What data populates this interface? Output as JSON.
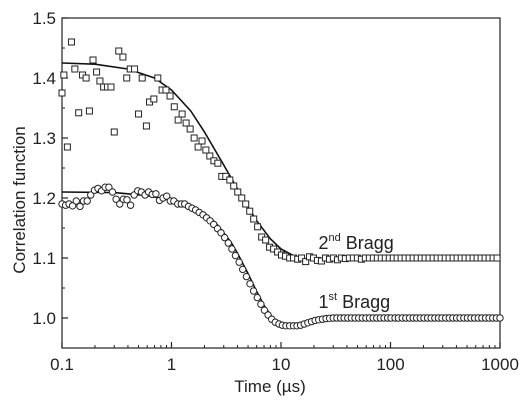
{
  "chart_data": {
    "type": "scatter",
    "xlabel_main": "Time (",
    "xlabel_unit": "µs",
    "xlabel_close": ")",
    "ylabel": "Correlation function",
    "x_scale": "log",
    "xlim": [
      0.1,
      1000
    ],
    "ylim": [
      0.95,
      1.5
    ],
    "x_ticks": [
      {
        "value": 0.1,
        "label": "0.1"
      },
      {
        "value": 1,
        "label": "1"
      },
      {
        "value": 10,
        "label": "10"
      },
      {
        "value": 100,
        "label": "100"
      },
      {
        "value": 1000,
        "label": "1000"
      }
    ],
    "y_ticks": [
      {
        "value": 1.0,
        "label": "1.0"
      },
      {
        "value": 1.1,
        "label": "1.1"
      },
      {
        "value": 1.2,
        "label": "1.2"
      },
      {
        "value": 1.3,
        "label": "1.3"
      },
      {
        "value": 1.4,
        "label": "1.4"
      },
      {
        "value": 1.5,
        "label": "1.5"
      }
    ],
    "grid": false,
    "series": [
      {
        "name": "2nd Bragg",
        "marker": "square",
        "points": [
          [
            0.1,
            1.375
          ],
          [
            0.104,
            1.405
          ],
          [
            0.112,
            1.285
          ],
          [
            0.122,
            1.46
          ],
          [
            0.131,
            1.415
          ],
          [
            0.142,
            1.342
          ],
          [
            0.154,
            1.405
          ],
          [
            0.166,
            1.4
          ],
          [
            0.178,
            1.345
          ],
          [
            0.192,
            1.43
          ],
          [
            0.207,
            1.41
          ],
          [
            0.222,
            1.395
          ],
          [
            0.24,
            1.385
          ],
          [
            0.26,
            1.385
          ],
          [
            0.28,
            1.385
          ],
          [
            0.3,
            1.31
          ],
          [
            0.33,
            1.445
          ],
          [
            0.36,
            1.435
          ],
          [
            0.39,
            1.4
          ],
          [
            0.42,
            1.415
          ],
          [
            0.46,
            1.415
          ],
          [
            0.5,
            1.34
          ],
          [
            0.54,
            1.4
          ],
          [
            0.59,
            1.32
          ],
          [
            0.63,
            1.36
          ],
          [
            0.69,
            1.365
          ],
          [
            0.75,
            1.4
          ],
          [
            0.82,
            1.38
          ],
          [
            0.89,
            1.38
          ],
          [
            0.97,
            1.37
          ],
          [
            1.06,
            1.352
          ],
          [
            1.15,
            1.33
          ],
          [
            1.25,
            1.34
          ],
          [
            1.36,
            1.325
          ],
          [
            1.48,
            1.315
          ],
          [
            1.61,
            1.3
          ],
          [
            1.75,
            1.285
          ],
          [
            1.9,
            1.295
          ],
          [
            2.06,
            1.28
          ],
          [
            2.24,
            1.27
          ],
          [
            2.44,
            1.262
          ],
          [
            2.65,
            1.258
          ],
          [
            2.88,
            1.236
          ],
          [
            3.13,
            1.236
          ],
          [
            3.41,
            1.23
          ],
          [
            3.7,
            1.22
          ],
          [
            4.03,
            1.21
          ],
          [
            4.38,
            1.2
          ],
          [
            4.76,
            1.19
          ],
          [
            5.18,
            1.178
          ],
          [
            5.63,
            1.165
          ],
          [
            6.12,
            1.152
          ],
          [
            6.66,
            1.135
          ],
          [
            7.24,
            1.13
          ],
          [
            7.87,
            1.118
          ],
          [
            8.56,
            1.115
          ],
          [
            9.31,
            1.11
          ],
          [
            10.1,
            1.105
          ],
          [
            11,
            1.103
          ],
          [
            12,
            1.1
          ],
          [
            13,
            1.1
          ],
          [
            14.2,
            1.098
          ],
          [
            15.4,
            1.1
          ],
          [
            16.8,
            1.094
          ],
          [
            18.2,
            1.102
          ],
          [
            19.8,
            1.1
          ],
          [
            21.5,
            1.096
          ],
          [
            23.4,
            1.095
          ],
          [
            25.5,
            1.1
          ],
          [
            27.7,
            1.098
          ],
          [
            30.1,
            1.1
          ],
          [
            32.8,
            1.097
          ],
          [
            35.6,
            1.1
          ],
          [
            38.7,
            1.099
          ],
          [
            42.1,
            1.1
          ],
          [
            45.8,
            1.1
          ],
          [
            49.8,
            1.1
          ],
          [
            54.2,
            1.098
          ],
          [
            58.9,
            1.1
          ],
          [
            64.1,
            1.1
          ],
          [
            69.7,
            1.1
          ],
          [
            75.8,
            1.1
          ],
          [
            82.4,
            1.1
          ],
          [
            89.6,
            1.1
          ],
          [
            97.5,
            1.1
          ],
          [
            106,
            1.1
          ],
          [
            115,
            1.1
          ],
          [
            125,
            1.1
          ],
          [
            136,
            1.1
          ],
          [
            148,
            1.1
          ],
          [
            161,
            1.1
          ],
          [
            175,
            1.1
          ],
          [
            191,
            1.1
          ],
          [
            207,
            1.1
          ],
          [
            225,
            1.1
          ],
          [
            245,
            1.1
          ],
          [
            267,
            1.1
          ],
          [
            290,
            1.1
          ],
          [
            316,
            1.1
          ],
          [
            343,
            1.1
          ],
          [
            373,
            1.1
          ],
          [
            406,
            1.1
          ],
          [
            442,
            1.1
          ],
          [
            480,
            1.1
          ],
          [
            522,
            1.1
          ],
          [
            568,
            1.1
          ],
          [
            618,
            1.1
          ],
          [
            672,
            1.1
          ],
          [
            731,
            1.1
          ],
          [
            795,
            1.1
          ],
          [
            865,
            1.1
          ],
          [
            940,
            1.1
          ]
        ],
        "fit": [
          [
            0.1,
            1.425
          ],
          [
            0.2,
            1.423
          ],
          [
            0.4,
            1.415
          ],
          [
            0.7,
            1.4
          ],
          [
            1.0,
            1.38
          ],
          [
            1.5,
            1.345
          ],
          [
            2.0,
            1.31
          ],
          [
            3.0,
            1.255
          ],
          [
            4.0,
            1.215
          ],
          [
            5.0,
            1.185
          ],
          [
            6.0,
            1.162
          ],
          [
            8.0,
            1.132
          ],
          [
            10,
            1.115
          ],
          [
            13,
            1.104
          ],
          [
            16,
            1.099
          ],
          [
            20,
            1.097
          ],
          [
            25,
            1.097
          ],
          [
            35,
            1.098
          ],
          [
            60,
            1.099
          ],
          [
            100,
            1.1
          ],
          [
            300,
            1.1
          ],
          [
            1000,
            1.1
          ]
        ]
      },
      {
        "name": "1st Bragg",
        "marker": "circle",
        "points": [
          [
            0.1,
            1.19
          ],
          [
            0.108,
            1.188
          ],
          [
            0.116,
            1.19
          ],
          [
            0.125,
            1.187
          ],
          [
            0.135,
            1.195
          ],
          [
            0.146,
            1.186
          ],
          [
            0.157,
            1.195
          ],
          [
            0.17,
            1.195
          ],
          [
            0.183,
            1.205
          ],
          [
            0.198,
            1.213
          ],
          [
            0.213,
            1.216
          ],
          [
            0.23,
            1.212
          ],
          [
            0.248,
            1.218
          ],
          [
            0.268,
            1.218
          ],
          [
            0.289,
            1.21
          ],
          [
            0.312,
            1.198
          ],
          [
            0.337,
            1.19
          ],
          [
            0.363,
            1.198
          ],
          [
            0.392,
            1.197
          ],
          [
            0.423,
            1.188
          ],
          [
            0.456,
            1.205
          ],
          [
            0.492,
            1.212
          ],
          [
            0.531,
            1.21
          ],
          [
            0.573,
            1.205
          ],
          [
            0.618,
            1.21
          ],
          [
            0.667,
            1.206
          ],
          [
            0.72,
            1.207
          ],
          [
            0.777,
            1.196
          ],
          [
            0.838,
            1.2
          ],
          [
            0.904,
            1.203
          ],
          [
            0.976,
            1.195
          ],
          [
            1.05,
            1.195
          ],
          [
            1.14,
            1.19
          ],
          [
            1.23,
            1.19
          ],
          [
            1.32,
            1.19
          ],
          [
            1.43,
            1.186
          ],
          [
            1.54,
            1.183
          ],
          [
            1.66,
            1.18
          ],
          [
            1.79,
            1.176
          ],
          [
            1.94,
            1.172
          ],
          [
            2.09,
            1.167
          ],
          [
            2.25,
            1.162
          ],
          [
            2.43,
            1.156
          ],
          [
            2.63,
            1.149
          ],
          [
            2.83,
            1.142
          ],
          [
            3.06,
            1.134
          ],
          [
            3.3,
            1.125
          ],
          [
            3.56,
            1.115
          ],
          [
            3.84,
            1.104
          ],
          [
            4.15,
            1.093
          ],
          [
            4.47,
            1.081
          ],
          [
            4.83,
            1.069
          ],
          [
            5.21,
            1.057
          ],
          [
            5.62,
            1.045
          ],
          [
            6.07,
            1.034
          ],
          [
            6.55,
            1.023
          ],
          [
            7.06,
            1.013
          ],
          [
            7.62,
            1.005
          ],
          [
            8.22,
            0.998
          ],
          [
            8.87,
            0.993
          ],
          [
            9.57,
            0.99
          ],
          [
            10.3,
            0.988
          ],
          [
            11.1,
            0.987
          ],
          [
            12,
            0.987
          ],
          [
            13,
            0.987
          ],
          [
            14,
            0.987
          ],
          [
            15.1,
            0.988
          ],
          [
            16.3,
            0.99
          ],
          [
            17.6,
            0.992
          ],
          [
            19,
            0.994
          ],
          [
            20.5,
            0.996
          ],
          [
            22.1,
            0.997
          ],
          [
            23.9,
            0.998
          ],
          [
            25.8,
            0.999
          ],
          [
            27.8,
            0.9995
          ],
          [
            30,
            1.0
          ],
          [
            32.4,
            1.0
          ],
          [
            35,
            1.0
          ],
          [
            37.7,
            1.0
          ],
          [
            40.7,
            1.0
          ],
          [
            43.9,
            1.0
          ],
          [
            47.4,
            1.0
          ],
          [
            51.2,
            1.0
          ],
          [
            55.2,
            1.0
          ],
          [
            59.6,
            1.0
          ],
          [
            64.3,
            1.0
          ],
          [
            69.4,
            1.0
          ],
          [
            74.9,
            1.0
          ],
          [
            80.8,
            1.0
          ],
          [
            87.2,
            1.0
          ],
          [
            94.1,
            1.0
          ],
          [
            101,
            1.0
          ],
          [
            110,
            1.0
          ],
          [
            118,
            1.0
          ],
          [
            128,
            1.0
          ],
          [
            138,
            1.0
          ],
          [
            149,
            1.0
          ],
          [
            161,
            1.0
          ],
          [
            173,
            1.0
          ],
          [
            187,
            1.0
          ],
          [
            202,
            1.0
          ],
          [
            218,
            1.0
          ],
          [
            235,
            1.0
          ],
          [
            254,
            1.0
          ],
          [
            274,
            1.0
          ],
          [
            295,
            1.0
          ],
          [
            319,
            1.0
          ],
          [
            344,
            1.0
          ],
          [
            371,
            1.0
          ],
          [
            401,
            1.0
          ],
          [
            432,
            1.0
          ],
          [
            467,
            1.0
          ],
          [
            504,
            1.0
          ],
          [
            543,
            1.0
          ],
          [
            586,
            1.0
          ],
          [
            633,
            1.0
          ],
          [
            683,
            1.0
          ],
          [
            737,
            1.0
          ],
          [
            795,
            1.0
          ],
          [
            858,
            1.0
          ],
          [
            926,
            1.0
          ],
          [
            999,
            1.0
          ]
        ],
        "fit": [
          [
            0.1,
            1.21
          ],
          [
            0.3,
            1.209
          ],
          [
            0.6,
            1.204
          ],
          [
            1.0,
            1.196
          ],
          [
            1.5,
            1.185
          ],
          [
            2.0,
            1.172
          ],
          [
            2.5,
            1.16
          ],
          [
            3.0,
            1.142
          ],
          [
            3.5,
            1.126
          ],
          [
            4.0,
            1.108
          ],
          [
            5.0,
            1.074
          ],
          [
            6.0,
            1.044
          ],
          [
            7.0,
            1.021
          ],
          [
            8.0,
            1.005
          ],
          [
            9.0,
            0.996
          ],
          [
            10,
            0.991
          ],
          [
            12,
            0.987
          ],
          [
            14,
            0.987
          ],
          [
            17,
            0.99
          ],
          [
            20,
            0.994
          ],
          [
            25,
            0.998
          ],
          [
            30,
            1.0
          ],
          [
            50,
            1.001
          ],
          [
            100,
            1.0
          ],
          [
            1000,
            1.0
          ]
        ]
      }
    ],
    "annotations": [
      {
        "text": "2",
        "sup": "nd",
        "rest": " Bragg",
        "x": 22,
        "y": 1.115
      },
      {
        "text": "1",
        "sup": "st",
        "rest": " Bragg",
        "x": 22,
        "y": 1.017
      }
    ]
  }
}
